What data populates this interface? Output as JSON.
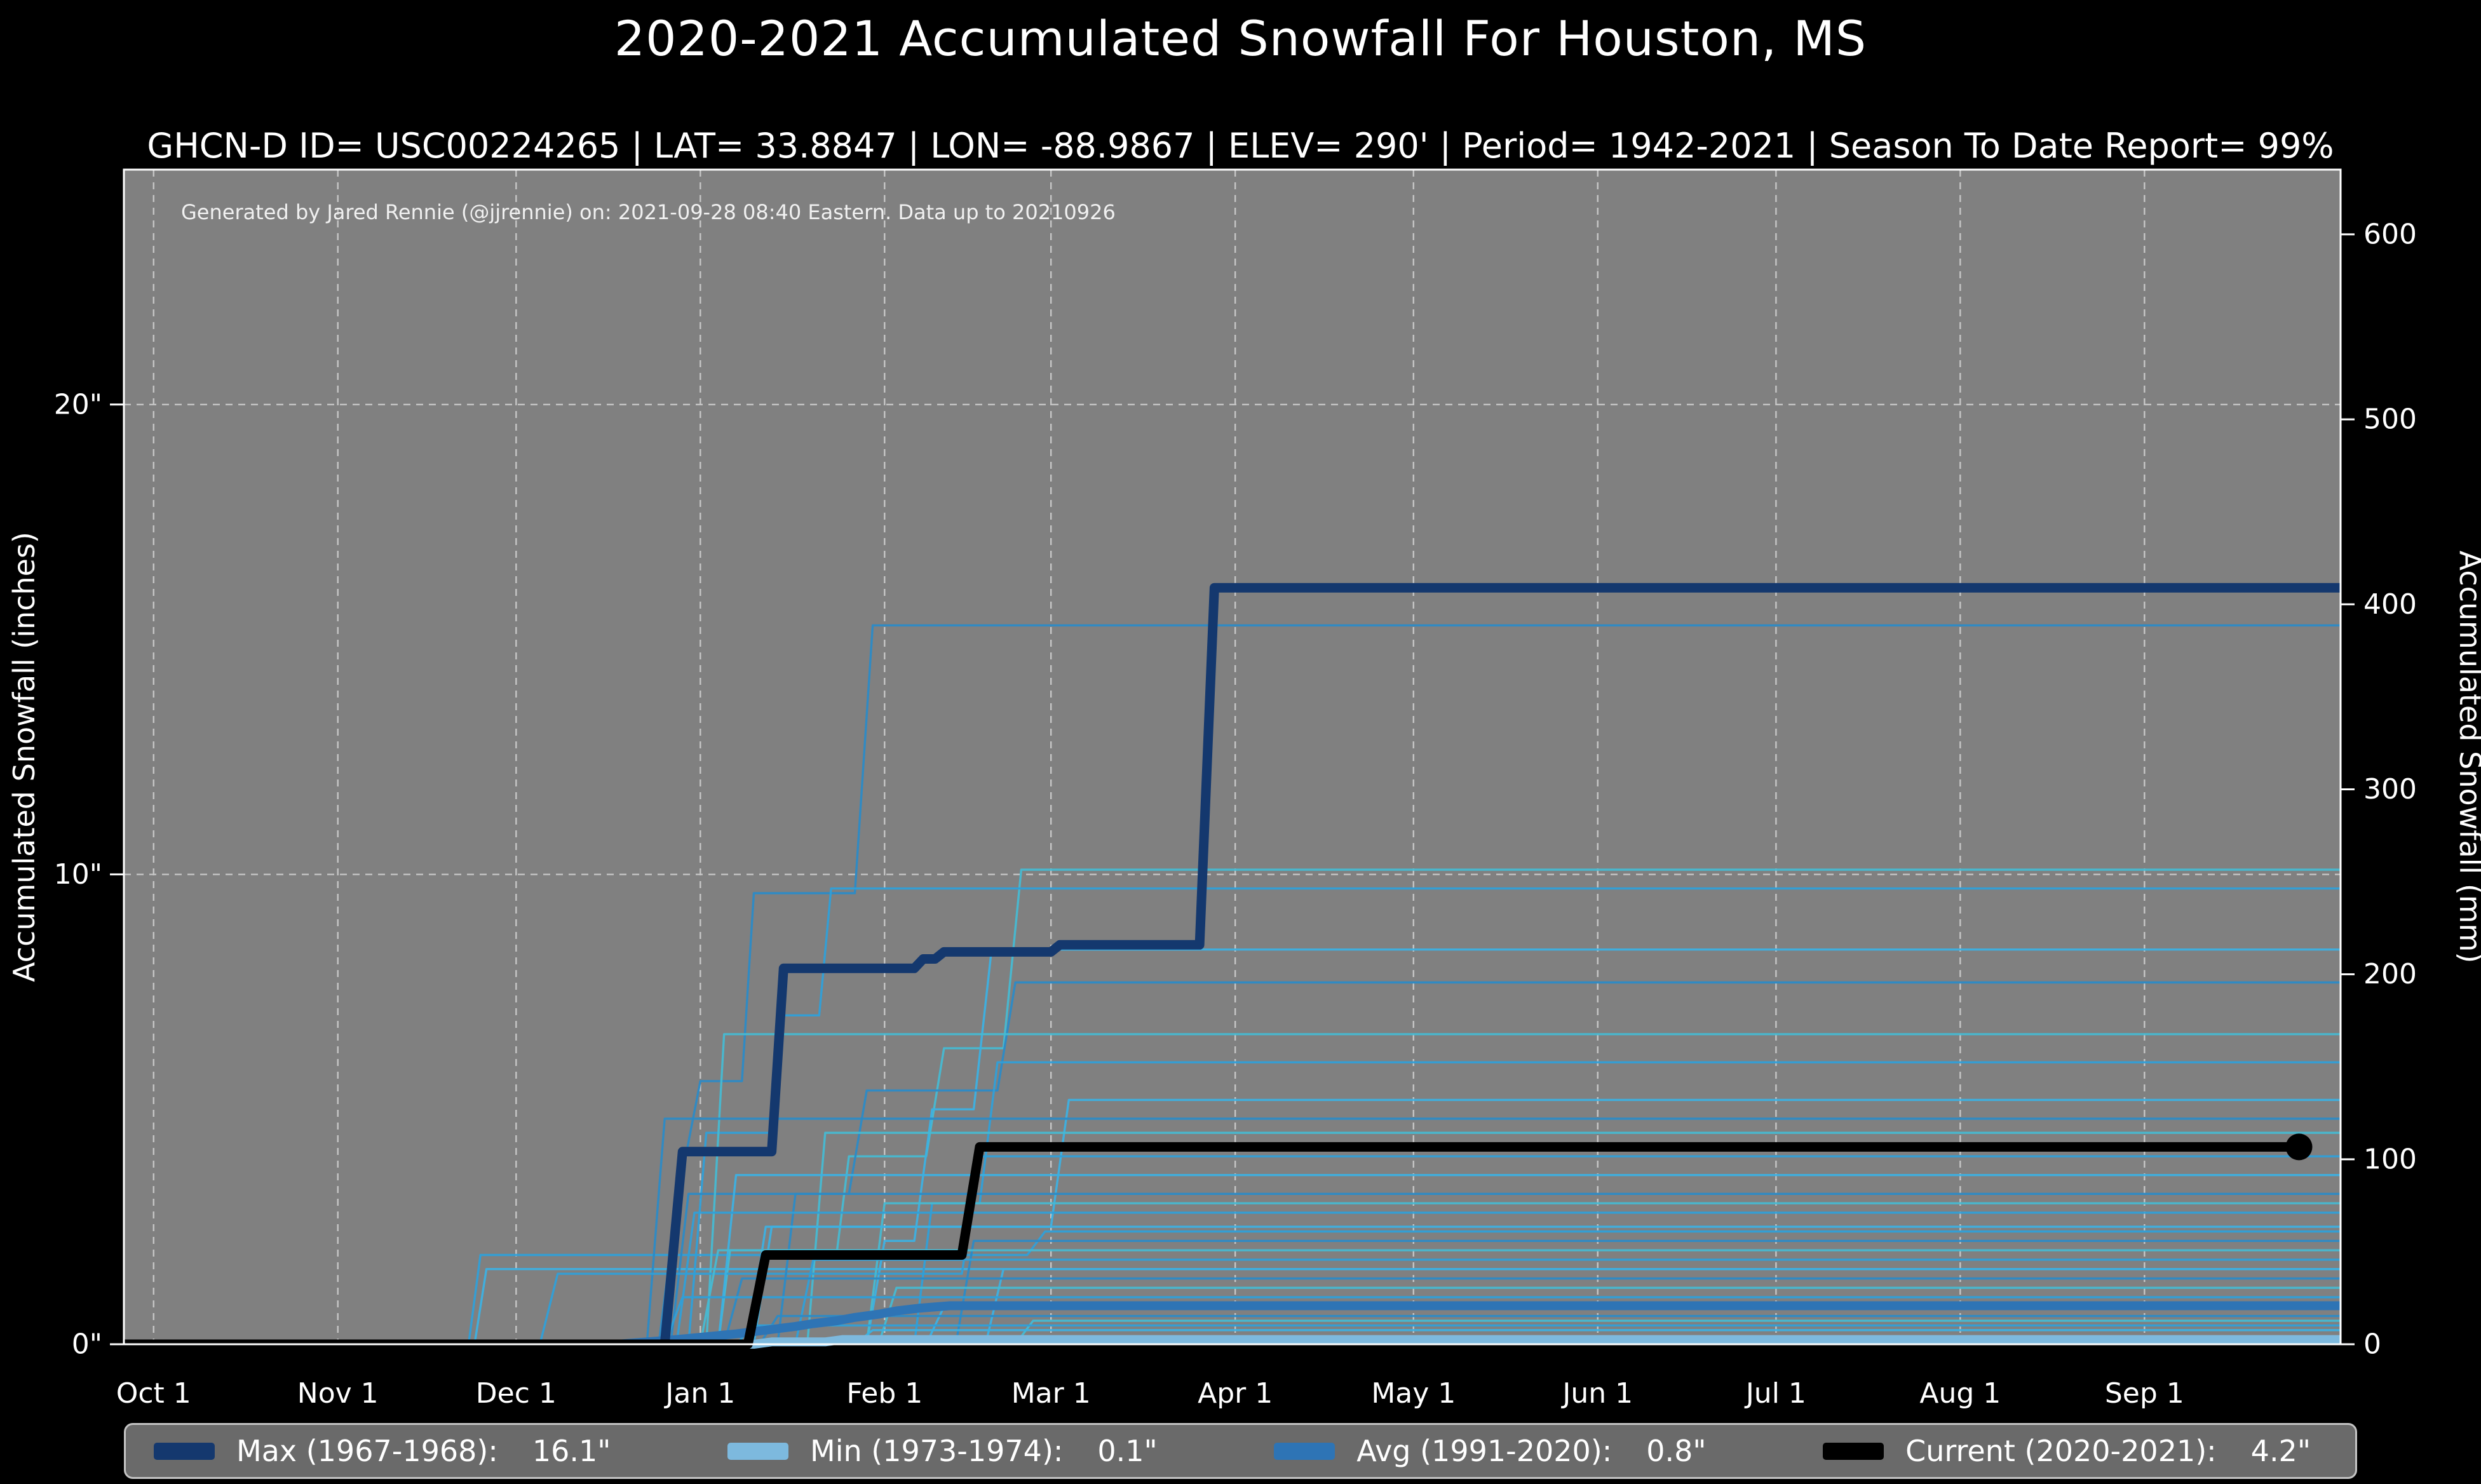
{
  "header": {
    "title": "2020-2021 Accumulated Snowfall For Houston, MS",
    "subtitle": "GHCN-D ID= USC00224265 | LAT= 33.8847 | LON= -88.9867 | ELEV= 290' | Period= 1942-2021 | Season To Date Report= 99%"
  },
  "annotation": "Generated by Jared Rennie (@jjrennie) on: 2021-09-28 08:40 Eastern. Data up to 20210926",
  "colors": {
    "figure_bg": "#000000",
    "plot_bg": "#808080",
    "grid": "#d3d3d3",
    "spine": "#ffffff",
    "text": "#ffffff",
    "max_line": "#14386e",
    "min_line": "#7db9de",
    "avg_line": "#2e74b5",
    "current_line": "#000000",
    "legend_bg": "#6a6a6a"
  },
  "chart_data": {
    "type": "line",
    "title": "2020-2021 Accumulated Snowfall For Houston, MS",
    "xlabel": "",
    "x_axis": {
      "range_days": [
        -5,
        368
      ],
      "ticks": [
        {
          "label": "Oct 1",
          "day": 0
        },
        {
          "label": "Nov 1",
          "day": 31
        },
        {
          "label": "Dec 1",
          "day": 61
        },
        {
          "label": "Jan 1",
          "day": 92
        },
        {
          "label": "Feb 1",
          "day": 123
        },
        {
          "label": "Mar 1",
          "day": 151
        },
        {
          "label": "Apr 1",
          "day": 182
        },
        {
          "label": "May 1",
          "day": 212
        },
        {
          "label": "Jun 1",
          "day": 243
        },
        {
          "label": "Jul 1",
          "day": 273
        },
        {
          "label": "Aug 1",
          "day": 304
        },
        {
          "label": "Sep 1",
          "day": 335
        }
      ]
    },
    "y_left": {
      "label": "Accumulated Snowfall (inches)",
      "range": [
        0,
        25
      ],
      "ticks": [
        {
          "label": "0\"",
          "value": 0
        },
        {
          "label": "10\"",
          "value": 10
        },
        {
          "label": "20\"",
          "value": 20
        }
      ]
    },
    "y_right": {
      "label": "Accumulated Snowfall (mm)",
      "ticks_mm": [
        0,
        100,
        200,
        300,
        400,
        500,
        600
      ]
    },
    "grid": {
      "dashed": true,
      "vertical_at_months": true,
      "horizontal_at_inches": [
        10,
        20
      ]
    },
    "legend_position": "bottom",
    "series": [
      {
        "id": "max",
        "name": "Max (1967-1968)",
        "value_label": "16.1\"",
        "color": "#14386e",
        "width": 15,
        "points": [
          [
            -5,
            0
          ],
          [
            86,
            0
          ],
          [
            89,
            4.1
          ],
          [
            104,
            4.1
          ],
          [
            106,
            8.0
          ],
          [
            128,
            8.0
          ],
          [
            129.5,
            8.2
          ],
          [
            131.5,
            8.2
          ],
          [
            133,
            8.35
          ],
          [
            151,
            8.35
          ],
          [
            152.5,
            8.5
          ],
          [
            176,
            8.5
          ],
          [
            178.5,
            16.1
          ],
          [
            368,
            16.1
          ]
        ]
      },
      {
        "id": "min",
        "name": "Min (1973-1974)",
        "value_label": "0.1\"",
        "color": "#7db9de",
        "width": 14,
        "points": [
          [
            -5,
            0
          ],
          [
            101,
            0
          ],
          [
            104,
            0.05
          ],
          [
            113,
            0.05
          ],
          [
            116,
            0.1
          ],
          [
            368,
            0.1
          ]
        ]
      },
      {
        "id": "avg",
        "name": "Avg (1991-2020)",
        "value_label": "0.8\"",
        "color": "#2e74b5",
        "width": 14,
        "points": [
          [
            -5,
            0
          ],
          [
            78,
            0
          ],
          [
            83,
            0.05
          ],
          [
            88,
            0.1
          ],
          [
            93,
            0.16
          ],
          [
            98,
            0.22
          ],
          [
            103,
            0.3
          ],
          [
            108,
            0.38
          ],
          [
            111,
            0.44
          ],
          [
            115,
            0.5
          ],
          [
            118,
            0.57
          ],
          [
            122,
            0.64
          ],
          [
            125,
            0.71
          ],
          [
            129,
            0.77
          ],
          [
            134,
            0.82
          ],
          [
            368,
            0.82
          ]
        ]
      },
      {
        "id": "current",
        "name": "Current (2020-2021)",
        "value_label": "4.2\"",
        "color": "#000000",
        "width": 15,
        "end_marker": true,
        "points": [
          [
            -5,
            0
          ],
          [
            100,
            0
          ],
          [
            103,
            1.9
          ],
          [
            136,
            1.9
          ],
          [
            139,
            4.2
          ],
          [
            361,
            4.2
          ]
        ]
      }
    ],
    "historical_series": [
      {
        "points": [
          [
            53,
            0
          ],
          [
            55,
            1.9
          ],
          [
            147,
            1.9
          ],
          [
            150,
            2.4
          ],
          [
            368,
            2.4
          ]
        ]
      },
      {
        "points": [
          [
            54,
            0
          ],
          [
            56,
            1.6
          ],
          [
            368,
            1.6
          ]
        ]
      },
      {
        "points": [
          [
            85,
            0
          ],
          [
            88,
            3.0
          ],
          [
            92,
            5.6
          ],
          [
            99,
            5.6
          ],
          [
            101,
            9.6
          ],
          [
            118,
            9.6
          ],
          [
            121,
            15.3
          ],
          [
            368,
            15.3
          ]
        ]
      },
      {
        "points": [
          [
            95,
            0
          ],
          [
            97,
            2.0
          ],
          [
            115,
            2.0
          ],
          [
            117,
            4.0
          ],
          [
            130,
            4.0
          ],
          [
            133,
            6.3
          ],
          [
            143,
            6.3
          ],
          [
            146,
            10.1
          ],
          [
            368,
            10.1
          ]
        ]
      },
      {
        "points": [
          [
            90,
            0
          ],
          [
            93,
            4.5
          ],
          [
            104,
            4.5
          ],
          [
            106,
            7.0
          ],
          [
            112,
            7.0
          ],
          [
            114,
            9.7
          ],
          [
            368,
            9.7
          ]
        ]
      },
      {
        "points": [
          [
            120,
            0
          ],
          [
            123,
            2.2
          ],
          [
            128,
            2.2
          ],
          [
            131,
            5.0
          ],
          [
            138,
            5.0
          ],
          [
            141,
            8.4
          ],
          [
            368,
            8.4
          ]
        ]
      },
      {
        "points": [
          [
            87,
            0
          ],
          [
            90,
            3.2
          ],
          [
            117,
            3.2
          ],
          [
            120,
            5.4
          ],
          [
            142,
            5.4
          ],
          [
            145,
            7.7
          ],
          [
            368,
            7.7
          ]
        ]
      },
      {
        "points": [
          [
            93,
            0
          ],
          [
            96,
            6.6
          ],
          [
            368,
            6.6
          ]
        ]
      },
      {
        "points": [
          [
            128,
            0
          ],
          [
            131,
            3.0
          ],
          [
            139,
            3.0
          ],
          [
            142,
            6.0
          ],
          [
            368,
            6.0
          ]
        ]
      },
      {
        "points": [
          [
            100,
            0
          ],
          [
            103,
            2.5
          ],
          [
            151,
            2.5
          ],
          [
            154,
            5.2
          ],
          [
            368,
            5.2
          ]
        ]
      },
      {
        "points": [
          [
            83,
            0
          ],
          [
            86,
            4.8
          ],
          [
            368,
            4.8
          ]
        ]
      },
      {
        "points": [
          [
            110,
            0
          ],
          [
            113,
            4.5
          ],
          [
            368,
            4.5
          ]
        ]
      },
      {
        "points": [
          [
            65,
            0
          ],
          [
            68,
            1.5
          ],
          [
            136,
            1.5
          ],
          [
            139,
            4.0
          ],
          [
            368,
            4.0
          ]
        ]
      },
      {
        "points": [
          [
            95,
            0
          ],
          [
            98,
            3.6
          ],
          [
            368,
            3.6
          ]
        ]
      },
      {
        "points": [
          [
            105,
            0
          ],
          [
            108,
            3.2
          ],
          [
            368,
            3.2
          ]
        ]
      },
      {
        "points": [
          [
            120,
            0
          ],
          [
            123,
            3.0
          ],
          [
            368,
            3.0
          ]
        ]
      },
      {
        "points": [
          [
            88,
            0
          ],
          [
            91,
            2.8
          ],
          [
            368,
            2.8
          ]
        ]
      },
      {
        "points": [
          [
            101,
            0
          ],
          [
            104,
            2.5
          ],
          [
            368,
            2.5
          ]
        ]
      },
      {
        "points": [
          [
            135,
            0
          ],
          [
            138,
            2.2
          ],
          [
            368,
            2.2
          ]
        ]
      },
      {
        "points": [
          [
            92,
            0
          ],
          [
            95,
            2.0
          ],
          [
            368,
            2.0
          ]
        ]
      },
      {
        "points": [
          [
            108,
            0
          ],
          [
            111,
            1.8
          ],
          [
            368,
            1.8
          ]
        ]
      },
      {
        "points": [
          [
            140,
            0
          ],
          [
            143,
            1.6
          ],
          [
            368,
            1.6
          ]
        ]
      },
      {
        "points": [
          [
            96,
            0
          ],
          [
            99,
            1.4
          ],
          [
            368,
            1.4
          ]
        ]
      },
      {
        "points": [
          [
            122,
            0
          ],
          [
            125,
            1.2
          ],
          [
            368,
            1.2
          ]
        ]
      },
      {
        "points": [
          [
            86,
            0
          ],
          [
            89,
            1.0
          ],
          [
            368,
            1.0
          ]
        ]
      },
      {
        "points": [
          [
            130,
            0
          ],
          [
            133,
            0.8
          ],
          [
            368,
            0.8
          ]
        ]
      },
      {
        "points": [
          [
            102,
            0
          ],
          [
            105,
            0.6
          ],
          [
            368,
            0.6
          ]
        ]
      },
      {
        "points": [
          [
            145,
            0
          ],
          [
            148,
            0.5
          ],
          [
            368,
            0.5
          ]
        ]
      },
      {
        "points": [
          [
            98,
            0
          ],
          [
            101,
            0.4
          ],
          [
            368,
            0.4
          ]
        ]
      },
      {
        "points": [
          [
            118,
            0
          ],
          [
            121,
            0.3
          ],
          [
            368,
            0.3
          ]
        ]
      }
    ],
    "historical_palette": [
      "#2f9fd8",
      "#3cb0e2",
      "#2b8ac6",
      "#46b9d2"
    ]
  },
  "legend": {
    "entries": [
      {
        "label": "Max (1967-1968):",
        "value": "16.1\"",
        "color": "#14386e"
      },
      {
        "label": "Min (1973-1974):",
        "value": "0.1\"",
        "color": "#7db9de"
      },
      {
        "label": "Avg (1991-2020):",
        "value": "0.8\"",
        "color": "#2e74b5"
      },
      {
        "label": "Current (2020-2021):",
        "value": "4.2\"",
        "color": "#000000"
      }
    ]
  }
}
